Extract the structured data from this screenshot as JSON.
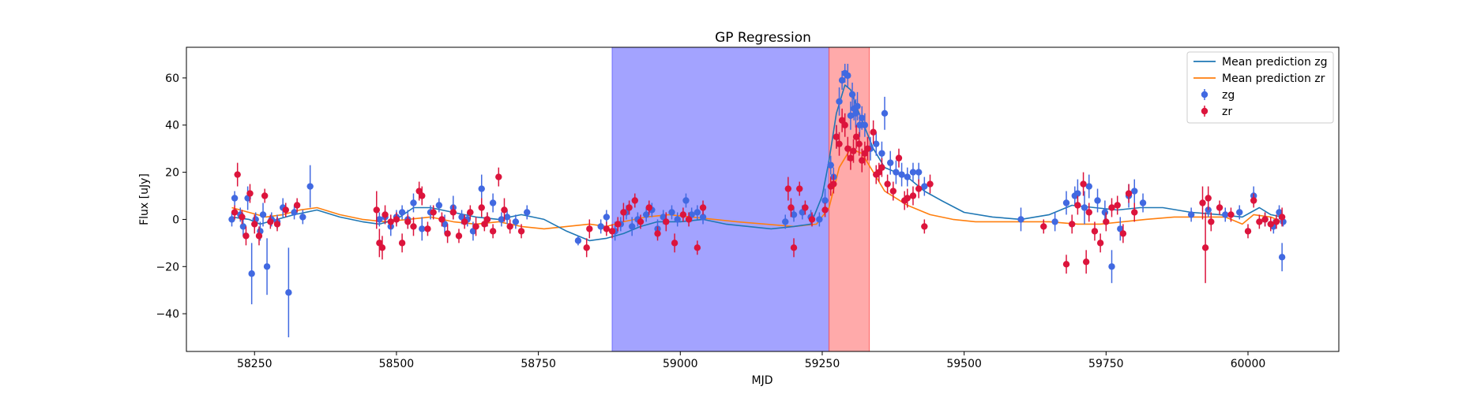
{
  "chart_data": {
    "type": "scatter",
    "title": "GP Regression",
    "xlabel": "MJD",
    "ylabel": "Flux [uJy]",
    "xlim": [
      58130,
      60160
    ],
    "ylim": [
      -56,
      73
    ],
    "xticks": [
      58250,
      58500,
      58750,
      59000,
      59250,
      59500,
      59750,
      60000
    ],
    "yticks": [
      -40,
      -20,
      0,
      20,
      40,
      60
    ],
    "grid": false,
    "legend_position": "top-right",
    "colors": {
      "zg_line": "#1f77b4",
      "zr_line": "#ff7f0e",
      "zg_points": "#4169e1",
      "zr_points": "#dc143c",
      "band_blue": "#6666ff",
      "band_red": "#ff5555"
    },
    "shaded_regions": [
      {
        "x0": 58880,
        "x1": 59262,
        "color": "#6666ff",
        "opacity": 0.6
      },
      {
        "x0": 59262,
        "x1": 59333,
        "color": "#ff5555",
        "opacity": 0.5
      }
    ],
    "legend": [
      {
        "label": "Mean prediction zg",
        "kind": "line",
        "series": "zg"
      },
      {
        "label": "Mean prediction zr",
        "kind": "line",
        "series": "zr"
      },
      {
        "label": "zg",
        "kind": "errorbar",
        "series": "zg"
      },
      {
        "label": "zr",
        "kind": "errorbar",
        "series": "zr"
      }
    ],
    "mean_prediction_zg": {
      "name": "Mean prediction zg",
      "x": [
        58210,
        58240,
        58260,
        58290,
        58320,
        58360,
        58400,
        58440,
        58470,
        58500,
        58530,
        58560,
        58600,
        58640,
        58680,
        58720,
        58760,
        58800,
        58840,
        58870,
        58900,
        58930,
        58960,
        59000,
        59040,
        59080,
        59120,
        59160,
        59200,
        59230,
        59250,
        59262,
        59275,
        59290,
        59300,
        59310,
        59320,
        59340,
        59360,
        59400,
        59430,
        59460,
        59500,
        59550,
        59600,
        59650,
        59690,
        59730,
        59770,
        59810,
        59850,
        59900,
        59950,
        59990,
        60020,
        60040,
        60060
      ],
      "y": [
        1,
        0,
        -2,
        0,
        2,
        4,
        1,
        -1,
        -2,
        0,
        5,
        5,
        3,
        1,
        0,
        2,
        0,
        -5,
        -9,
        -8,
        -6,
        -3,
        -1,
        -1,
        0,
        -2,
        -3,
        -4,
        -3,
        -2,
        10,
        25,
        45,
        57,
        55,
        48,
        42,
        30,
        22,
        18,
        12,
        8,
        3,
        1,
        0,
        2,
        6,
        5,
        4,
        5,
        5,
        3,
        2,
        1,
        5,
        2,
        1
      ]
    },
    "mean_prediction_zr": {
      "name": "Mean prediction zr",
      "x": [
        58210,
        58240,
        58270,
        58300,
        58330,
        58360,
        58400,
        58440,
        58480,
        58520,
        58560,
        58600,
        58640,
        58680,
        58720,
        58760,
        58800,
        58840,
        58870,
        58900,
        58940,
        58980,
        59020,
        59060,
        59100,
        59150,
        59200,
        59240,
        59262,
        59280,
        59300,
        59320,
        59340,
        59360,
        59400,
        59440,
        59480,
        59520,
        59560,
        59600,
        59650,
        59700,
        59740,
        59780,
        59820,
        59870,
        59920,
        59960,
        59990,
        60010,
        60040,
        60060
      ],
      "y": [
        5,
        3,
        1,
        2,
        4,
        5,
        2,
        0,
        -1,
        0,
        1,
        -1,
        -2,
        -1,
        -3,
        -4,
        -3,
        -2,
        -3,
        -1,
        1,
        2,
        1,
        0,
        -1,
        -2,
        -3,
        -2,
        5,
        22,
        30,
        28,
        20,
        12,
        6,
        2,
        0,
        -1,
        -1,
        -1,
        -1,
        -2,
        -2,
        -1,
        0,
        1,
        1,
        1,
        -2,
        2,
        1,
        -1
      ]
    },
    "series": [
      {
        "name": "zg",
        "x": [
          58210,
          58215,
          58225,
          58230,
          58238,
          58245,
          58252,
          58260,
          58265,
          58272,
          58280,
          58290,
          58300,
          58310,
          58320,
          58335,
          58348,
          58470,
          58480,
          58490,
          58500,
          58510,
          58520,
          58530,
          58545,
          58560,
          58575,
          58585,
          58600,
          58615,
          58625,
          58635,
          58650,
          58660,
          58670,
          58685,
          58695,
          58710,
          58730,
          58820,
          58860,
          58870,
          58885,
          58895,
          58905,
          58915,
          58925,
          58940,
          58950,
          58960,
          58970,
          58985,
          58995,
          59010,
          59020,
          59030,
          59040,
          59185,
          59200,
          59215,
          59230,
          59245,
          59255,
          59265,
          59270,
          59275,
          59280,
          59285,
          59290,
          59295,
          59300,
          59303,
          59306,
          59309,
          59312,
          59316,
          59320,
          59325,
          59335,
          59345,
          59355,
          59360,
          59370,
          59380,
          59390,
          59400,
          59410,
          59420,
          59430,
          59600,
          59660,
          59680,
          59695,
          59700,
          59712,
          59720,
          59735,
          59748,
          59760,
          59775,
          59790,
          59800,
          59815,
          59900,
          59930,
          59960,
          59985,
          60010,
          60030,
          60045,
          60055,
          60060,
          60062
        ],
        "y": [
          0,
          9,
          2,
          -3,
          9,
          -23,
          0,
          -5,
          2,
          -20,
          0,
          -1,
          5,
          -31,
          3,
          1,
          14,
          0,
          1,
          -3,
          1,
          3,
          0,
          7,
          -4,
          3,
          6,
          -2,
          5,
          1,
          0,
          -5,
          13,
          0,
          7,
          0,
          1,
          -1,
          3,
          -9,
          -3,
          1,
          -5,
          -2,
          3,
          -3,
          0,
          2,
          4,
          -4,
          1,
          3,
          0,
          8,
          2,
          3,
          1,
          -1,
          2,
          3,
          1,
          0,
          8,
          23,
          18,
          35,
          50,
          59,
          62,
          61,
          44,
          53,
          47,
          45,
          48,
          40,
          43,
          40,
          30,
          32,
          28,
          45,
          24,
          20,
          19,
          18,
          20,
          20,
          14,
          0,
          -1,
          7,
          10,
          11,
          5,
          14,
          8,
          3,
          -20,
          -4,
          10,
          12,
          7,
          2,
          4,
          2,
          3,
          10,
          0,
          -3,
          3,
          -16,
          -1
        ],
        "err": [
          3,
          3,
          3,
          4,
          5,
          13,
          3,
          4,
          5,
          12,
          3,
          3,
          4,
          19,
          3,
          3,
          9,
          3,
          3,
          4,
          3,
          3,
          4,
          4,
          5,
          3,
          3,
          4,
          5,
          3,
          3,
          4,
          6,
          3,
          4,
          3,
          3,
          3,
          3,
          2,
          3,
          3,
          4,
          3,
          3,
          4,
          3,
          3,
          3,
          4,
          3,
          3,
          3,
          3,
          3,
          3,
          3,
          3,
          3,
          3,
          3,
          3,
          5,
          4,
          4,
          5,
          6,
          4,
          4,
          5,
          6,
          5,
          5,
          6,
          6,
          5,
          5,
          5,
          5,
          5,
          5,
          7,
          5,
          5,
          5,
          4,
          4,
          4,
          4,
          5,
          4,
          5,
          4,
          6,
          7,
          5,
          5,
          5,
          7,
          5,
          5,
          5,
          4,
          3,
          3,
          3,
          3,
          4,
          3,
          3,
          3,
          6,
          2
        ]
      },
      {
        "name": "zr",
        "x": [
          58215,
          58220,
          58228,
          58235,
          58242,
          58250,
          58258,
          58268,
          58278,
          58290,
          58305,
          58325,
          58465,
          58470,
          58475,
          58480,
          58490,
          58500,
          58510,
          58520,
          58530,
          58540,
          58545,
          58555,
          58565,
          58580,
          58590,
          58600,
          58610,
          58620,
          58630,
          58640,
          58650,
          58655,
          58660,
          58670,
          58680,
          58690,
          58700,
          58720,
          58835,
          58840,
          58870,
          58880,
          58890,
          58900,
          58910,
          58920,
          58930,
          58945,
          58960,
          58975,
          58990,
          59005,
          59015,
          59030,
          59040,
          59190,
          59195,
          59200,
          59210,
          59220,
          59232,
          59255,
          59265,
          59270,
          59275,
          59280,
          59285,
          59290,
          59295,
          59300,
          59305,
          59310,
          59315,
          59320,
          59325,
          59330,
          59340,
          59345,
          59350,
          59355,
          59365,
          59375,
          59385,
          59395,
          59400,
          59410,
          59420,
          59430,
          59440,
          59640,
          59680,
          59690,
          59700,
          59710,
          59715,
          59720,
          59730,
          59740,
          59750,
          59760,
          59770,
          59780,
          59790,
          59800,
          59920,
          59925,
          59930,
          59935,
          59950,
          59970,
          60000,
          60010,
          60020,
          60030,
          60040,
          60050,
          60060
        ],
        "y": [
          3,
          19,
          1,
          -7,
          11,
          -2,
          -7,
          10,
          -1,
          -2,
          4,
          6,
          4,
          -10,
          -12,
          2,
          -1,
          0,
          -10,
          -1,
          -3,
          12,
          10,
          -4,
          3,
          0,
          -6,
          3,
          -7,
          -1,
          3,
          -3,
          5,
          -2,
          0,
          -5,
          18,
          4,
          -3,
          -5,
          -12,
          -4,
          -4,
          -5,
          -2,
          3,
          5,
          8,
          -1,
          5,
          -6,
          -1,
          -10,
          2,
          0,
          -12,
          5,
          13,
          5,
          -12,
          13,
          5,
          0,
          4,
          14,
          15,
          35,
          32,
          42,
          40,
          30,
          26,
          29,
          35,
          32,
          25,
          28,
          30,
          37,
          19,
          20,
          22,
          15,
          12,
          26,
          8,
          9,
          10,
          13,
          -3,
          15,
          -3,
          -19,
          -2,
          6,
          15,
          -18,
          3,
          -5,
          -10,
          -1,
          5,
          6,
          -6,
          11,
          3,
          7,
          -12,
          9,
          -1,
          5,
          2,
          -5,
          8,
          -1,
          0,
          -2,
          -1,
          1
        ],
        "err": [
          3,
          5,
          3,
          4,
          4,
          4,
          4,
          3,
          3,
          3,
          3,
          3,
          8,
          6,
          5,
          4,
          3,
          3,
          4,
          3,
          4,
          4,
          4,
          3,
          3,
          3,
          4,
          3,
          3,
          3,
          3,
          4,
          4,
          3,
          3,
          3,
          4,
          5,
          3,
          3,
          4,
          4,
          3,
          3,
          3,
          4,
          3,
          3,
          3,
          3,
          3,
          4,
          4,
          3,
          3,
          3,
          3,
          5,
          4,
          4,
          3,
          3,
          3,
          3,
          4,
          4,
          5,
          5,
          5,
          5,
          5,
          5,
          5,
          5,
          5,
          5,
          5,
          5,
          5,
          4,
          4,
          4,
          4,
          4,
          4,
          4,
          4,
          4,
          4,
          3,
          4,
          3,
          4,
          4,
          4,
          5,
          5,
          4,
          4,
          4,
          4,
          4,
          4,
          4,
          4,
          4,
          7,
          15,
          5,
          4,
          3,
          3,
          3,
          3,
          3,
          3,
          3,
          3,
          4
        ]
      }
    ]
  }
}
